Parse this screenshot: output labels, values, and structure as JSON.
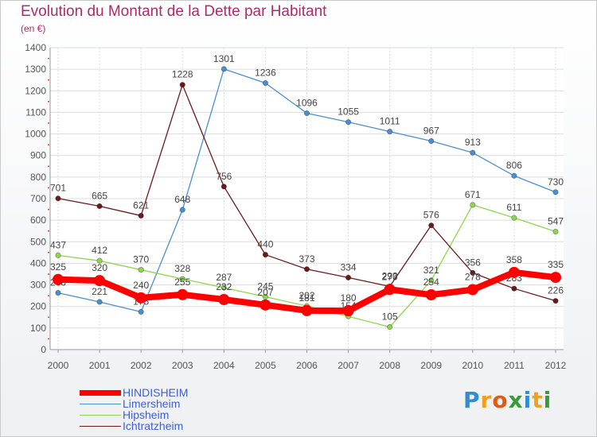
{
  "title": "Evolution du Montant de la Dette par Habitant",
  "subtitle": "(en €)",
  "logo": {
    "text": "Proxiti",
    "colors": [
      "#2f8ed1",
      "#f0a020",
      "#e05a1a",
      "#3a9a3a",
      "#2f8ed1",
      "#f0a020",
      "#3a9a3a"
    ]
  },
  "chart_data": {
    "type": "line",
    "categories": [
      "2000",
      "2001",
      "2002",
      "2003",
      "2004",
      "2005",
      "2006",
      "2007",
      "2008",
      "2009",
      "2010",
      "2011",
      "2012"
    ],
    "ylim": [
      0,
      1400
    ],
    "yticks": [
      "0",
      "100",
      "200",
      "300",
      "400",
      "500",
      "600",
      "700",
      "800",
      "900",
      "1000",
      "1100",
      "1200",
      "1300",
      "1400"
    ],
    "grid": true,
    "legend_position": "bottom-left",
    "series": [
      {
        "name": "Limersheim",
        "color": "#4a8fd0",
        "values": [
          263,
          221,
          175,
          648,
          1301,
          1236,
          1096,
          1055,
          1011,
          967,
          913,
          806,
          730
        ]
      },
      {
        "name": "Hipsheim",
        "color": "#8ed64e",
        "values": [
          437,
          412,
          370,
          328,
          287,
          245,
          202,
          154,
          105,
          321,
          671,
          611,
          547
        ]
      },
      {
        "name": "Ichtratzheim",
        "color": "#6a1a1a",
        "values": [
          701,
          665,
          621,
          1228,
          756,
          440,
          373,
          334,
          293,
          576,
          356,
          283,
          226
        ]
      },
      {
        "name": "HINDISHEIM",
        "color": "#ff0000",
        "values": [
          325,
          320,
          240,
          255,
          232,
          207,
          181,
          180,
          279,
          254,
          278,
          358,
          335
        ]
      }
    ],
    "data_labels": [
      {
        "series": "Limersheim",
        "values": [
          "263",
          "221",
          "175",
          "648",
          "1301",
          "1236",
          "1096",
          "1055",
          "1011",
          "967",
          "913",
          "806",
          "730"
        ]
      },
      {
        "series": "Hipsheim",
        "values": [
          "437",
          "412",
          "370",
          "328",
          "287",
          "245",
          "202",
          "154",
          "105",
          "321",
          "671",
          "611",
          "547"
        ]
      },
      {
        "series": "Ichtratzheim",
        "values": [
          "701",
          "665",
          "621",
          "1228",
          "756",
          "440",
          "373",
          "334",
          "293",
          "576",
          "356",
          "283",
          "226"
        ]
      },
      {
        "series": "HINDISHEIM",
        "values": [
          "325",
          "320",
          "240",
          "255",
          "232",
          "207",
          "181",
          "180",
          "279",
          "254",
          "278",
          "358",
          "335"
        ]
      }
    ]
  },
  "legend": [
    {
      "name": "HINDISHEIM",
      "color": "#ff0000",
      "thickness": 7
    },
    {
      "name": "Limersheim",
      "color": "#4a8fd0",
      "thickness": 1
    },
    {
      "name": "Hipsheim",
      "color": "#8ed64e",
      "thickness": 1
    },
    {
      "name": "Ichtratzheim",
      "color": "#6a1a1a",
      "thickness": 1
    }
  ]
}
